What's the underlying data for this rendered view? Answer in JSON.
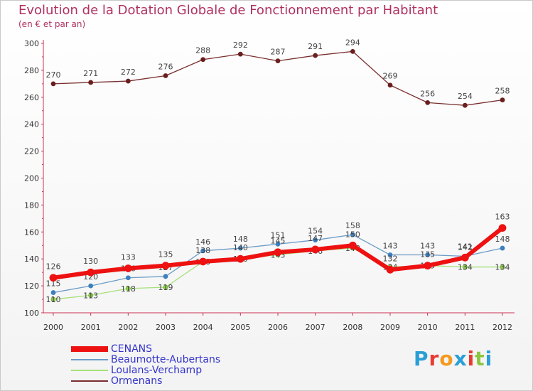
{
  "header": {
    "title": "Evolution de la Dotation Globale de Fonctionnement par Habitant",
    "subtitle": "(en € et par an)"
  },
  "logo": {
    "letters": [
      "P",
      "r",
      "o",
      "x",
      "i",
      "t",
      "i"
    ],
    "colors": [
      "#2a9fd6",
      "#e63c2f",
      "#f39a1e",
      "#2a9fd6",
      "#e63c2f",
      "#8cc63f",
      "#2a9fd6"
    ]
  },
  "chart_data": {
    "type": "line",
    "title": "Evolution de la Dotation Globale de Fonctionnement par Habitant",
    "subtitle": "(en € et par an)",
    "xlabel": "",
    "ylabel": "",
    "ylim": [
      100,
      300
    ],
    "yticks": [
      100,
      120,
      140,
      160,
      180,
      200,
      220,
      240,
      260,
      280,
      300
    ],
    "grid": false,
    "legend_position": "bottom-left",
    "categories": [
      "2000",
      "2001",
      "2002",
      "2003",
      "2004",
      "2005",
      "2006",
      "2007",
      "2008",
      "2009",
      "2010",
      "2011",
      "2012"
    ],
    "series": [
      {
        "name": "Ormenans",
        "color": "#7a2e2e",
        "values": [
          270,
          271,
          272,
          276,
          288,
          292,
          287,
          291,
          294,
          269,
          256,
          254,
          258
        ],
        "labels": [
          "270",
          "271",
          "272",
          "276",
          "288",
          "292",
          "287",
          "291",
          "294",
          "269",
          "256",
          "254",
          "258"
        ]
      },
      {
        "name": "Beaumotte-Aubertans",
        "color": "#6b9cc8",
        "values": [
          115,
          120,
          126,
          127,
          146,
          148,
          151,
          154,
          158,
          143,
          143,
          142,
          148
        ],
        "labels": [
          "115",
          "120",
          "126",
          "127",
          "146",
          "148",
          "151",
          "154",
          "158",
          "143",
          "143",
          "142",
          "148"
        ]
      },
      {
        "name": "Loulans-Verchamp",
        "color": "#a6e07a",
        "values": [
          110,
          113,
          118,
          119,
          138,
          140,
          143,
          146,
          148,
          134,
          135,
          134,
          134
        ],
        "labels": [
          "110",
          "113",
          "118",
          "119",
          "138",
          "140",
          "143",
          "146",
          "148",
          "134",
          "135",
          "134",
          "134"
        ]
      },
      {
        "name": "CENANS",
        "color": "#ee1111",
        "values": [
          126,
          130,
          133,
          135,
          138,
          140,
          145,
          147,
          150,
          132,
          135,
          141,
          163
        ],
        "labels": [
          "126",
          "130",
          "133",
          "135",
          "138",
          "140",
          "145",
          "147",
          "150",
          "132",
          "135",
          "141",
          "163"
        ]
      }
    ],
    "legend": [
      "CENANS",
      "Beaumotte-Aubertans",
      "Loulans-Verchamp",
      "Ormenans"
    ]
  }
}
